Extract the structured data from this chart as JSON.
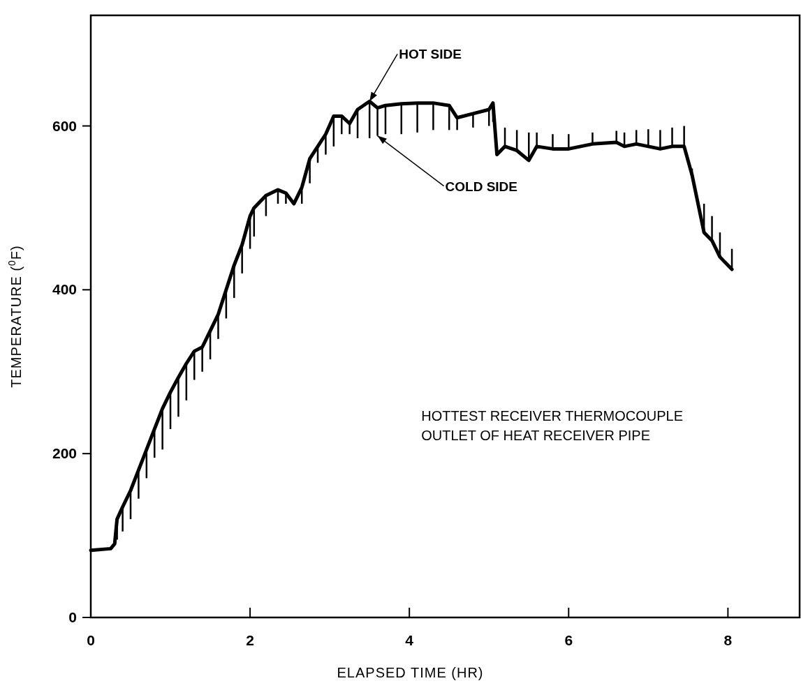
{
  "chart_data": {
    "type": "line",
    "xlabel": "ELAPSED TIME  (HR)",
    "ylabel": "TEMPERATURE ($^{0}$F)",
    "xlim": [
      0,
      8.9
    ],
    "ylim": [
      0,
      735
    ],
    "xticks": [
      0,
      2,
      4,
      6,
      8
    ],
    "yticks": [
      0,
      200,
      400,
      600
    ],
    "grid": false,
    "marker": "none",
    "line_style": "solid",
    "series": [
      {
        "color": "#000000",
        "x": [
          0,
          0.25,
          0.3,
          0.33,
          0.4,
          0.5,
          0.6,
          0.7,
          0.8,
          0.9,
          1.0,
          1.1,
          1.2,
          1.3,
          1.4,
          1.5,
          1.6,
          1.7,
          1.8,
          1.9,
          2.0,
          2.05,
          2.2,
          2.35,
          2.45,
          2.55,
          2.65,
          2.75,
          2.85,
          2.95,
          3.05,
          3.15,
          3.25,
          3.35,
          3.5,
          3.6,
          3.7,
          3.9,
          4.1,
          4.3,
          4.5,
          4.6,
          4.8,
          5.0,
          5.05,
          5.1,
          5.2,
          5.35,
          5.5,
          5.6,
          5.8,
          6.0,
          6.3,
          6.6,
          6.7,
          6.85,
          7.0,
          7.15,
          7.3,
          7.45,
          7.55,
          7.7,
          7.8,
          7.9,
          8.05
        ],
        "values": [
          82,
          84,
          90,
          120,
          135,
          155,
          180,
          205,
          230,
          255,
          275,
          293,
          310,
          325,
          330,
          350,
          370,
          400,
          430,
          455,
          490,
          500,
          515,
          522,
          518,
          505,
          525,
          560,
          575,
          590,
          612,
          612,
          603,
          620,
          630,
          622,
          625,
          627,
          628,
          628,
          625,
          610,
          615,
          620,
          628,
          565,
          575,
          570,
          558,
          575,
          572,
          572,
          578,
          580,
          575,
          578,
          575,
          572,
          575,
          575,
          540,
          470,
          460,
          440,
          425
        ],
        "errors": [
          null,
          null,
          null,
          [
            95,
            120
          ],
          [
            105,
            135
          ],
          [
            120,
            155
          ],
          [
            145,
            180
          ],
          [
            170,
            205
          ],
          [
            195,
            230
          ],
          [
            205,
            255
          ],
          [
            230,
            275
          ],
          [
            245,
            293
          ],
          [
            265,
            310
          ],
          [
            290,
            325
          ],
          [
            300,
            330
          ],
          [
            315,
            350
          ],
          [
            340,
            370
          ],
          [
            365,
            400
          ],
          [
            390,
            430
          ],
          [
            420,
            455
          ],
          [
            450,
            490
          ],
          [
            465,
            500
          ],
          [
            490,
            515
          ],
          [
            505,
            522
          ],
          [
            505,
            518
          ],
          null,
          [
            505,
            525
          ],
          [
            530,
            560
          ],
          [
            555,
            575
          ],
          [
            565,
            590
          ],
          [
            575,
            612
          ],
          [
            590,
            612
          ],
          [
            590,
            603
          ],
          [
            585,
            620
          ],
          [
            585,
            630
          ],
          [
            588,
            622
          ],
          [
            590,
            625
          ],
          [
            590,
            627
          ],
          [
            592,
            628
          ],
          [
            595,
            628
          ],
          [
            595,
            625
          ],
          [
            595,
            610
          ],
          [
            598,
            615
          ],
          [
            600,
            620
          ],
          [
            605,
            628
          ],
          null,
          [
            575,
            598
          ],
          [
            570,
            595
          ],
          [
            558,
            592
          ],
          [
            575,
            592
          ],
          [
            572,
            590
          ],
          [
            572,
            590
          ],
          [
            578,
            592
          ],
          [
            580,
            594
          ],
          [
            575,
            592
          ],
          [
            578,
            595
          ],
          [
            575,
            596
          ],
          [
            572,
            595
          ],
          [
            575,
            598
          ],
          [
            575,
            600
          ],
          [
            540,
            548
          ],
          [
            470,
            505
          ],
          [
            460,
            490
          ],
          [
            440,
            470
          ],
          [
            425,
            450
          ]
        ]
      }
    ],
    "annotations": [
      {
        "text": "HOT SIDE",
        "x": 3.5,
        "y": 630
      },
      {
        "text": "COLD SIDE",
        "x": 3.6,
        "y": 588
      },
      "HOTTEST RECEIVER THERMOCOUPLE",
      "OUTLET OF HEAT RECEIVER PIPE"
    ]
  }
}
